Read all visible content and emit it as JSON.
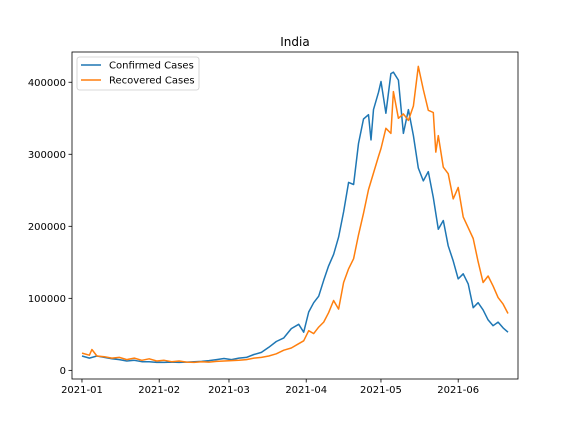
{
  "chart_data": {
    "type": "line",
    "title": "India",
    "xlabel": "",
    "ylabel": "",
    "x_tick_labels": [
      "2021-01",
      "2021-02",
      "2021-03",
      "2021-04",
      "2021-05",
      "2021-06"
    ],
    "x_tick_dates": [
      "2021-01-01",
      "2021-02-01",
      "2021-03-01",
      "2021-04-01",
      "2021-05-01",
      "2021-06-01"
    ],
    "y_ticks": [
      0,
      100000,
      200000,
      300000,
      400000
    ],
    "xlim": [
      "2020-12-28",
      "2021-06-25"
    ],
    "ylim": [
      -12000,
      442000
    ],
    "legend_position": "upper left",
    "grid": false,
    "series": [
      {
        "name": "Confirmed Cases",
        "color": "#1f77b4",
        "points": [
          [
            "2021-01-01",
            20000
          ],
          [
            "2021-01-04",
            17000
          ],
          [
            "2021-01-07",
            20000
          ],
          [
            "2021-01-10",
            18000
          ],
          [
            "2021-01-13",
            16000
          ],
          [
            "2021-01-16",
            15000
          ],
          [
            "2021-01-19",
            13000
          ],
          [
            "2021-01-22",
            14000
          ],
          [
            "2021-01-25",
            12000
          ],
          [
            "2021-01-28",
            12000
          ],
          [
            "2021-01-31",
            11000
          ],
          [
            "2021-02-03",
            11000
          ],
          [
            "2021-02-06",
            11500
          ],
          [
            "2021-02-09",
            11000
          ],
          [
            "2021-02-12",
            11500
          ],
          [
            "2021-02-15",
            12000
          ],
          [
            "2021-02-18",
            12500
          ],
          [
            "2021-02-21",
            13500
          ],
          [
            "2021-02-24",
            15000
          ],
          [
            "2021-02-27",
            16500
          ],
          [
            "2021-03-02",
            15000
          ],
          [
            "2021-03-05",
            17000
          ],
          [
            "2021-03-08",
            18000
          ],
          [
            "2021-03-11",
            22000
          ],
          [
            "2021-03-14",
            25000
          ],
          [
            "2021-03-17",
            32000
          ],
          [
            "2021-03-20",
            40000
          ],
          [
            "2021-03-23",
            45000
          ],
          [
            "2021-03-26",
            58000
          ],
          [
            "2021-03-29",
            64000
          ],
          [
            "2021-03-31",
            53000
          ],
          [
            "2021-04-02",
            81000
          ],
          [
            "2021-04-04",
            94000
          ],
          [
            "2021-04-06",
            103000
          ],
          [
            "2021-04-08",
            125000
          ],
          [
            "2021-04-10",
            145000
          ],
          [
            "2021-04-12",
            161000
          ],
          [
            "2021-04-14",
            185000
          ],
          [
            "2021-04-16",
            220000
          ],
          [
            "2021-04-18",
            261000
          ],
          [
            "2021-04-20",
            258000
          ],
          [
            "2021-04-22",
            315000
          ],
          [
            "2021-04-24",
            349000
          ],
          [
            "2021-04-26",
            355000
          ],
          [
            "2021-04-27",
            320000
          ],
          [
            "2021-04-28",
            362000
          ],
          [
            "2021-04-30",
            386000
          ],
          [
            "2021-05-01",
            401000
          ],
          [
            "2021-05-03",
            357000
          ],
          [
            "2021-05-05",
            412000
          ],
          [
            "2021-05-06",
            414000
          ],
          [
            "2021-05-08",
            403000
          ],
          [
            "2021-05-10",
            329000
          ],
          [
            "2021-05-12",
            362000
          ],
          [
            "2021-05-14",
            326000
          ],
          [
            "2021-05-16",
            281000
          ],
          [
            "2021-05-18",
            263000
          ],
          [
            "2021-05-20",
            276000
          ],
          [
            "2021-05-22",
            240000
          ],
          [
            "2021-05-24",
            196000
          ],
          [
            "2021-05-26",
            208000
          ],
          [
            "2021-05-28",
            173000
          ],
          [
            "2021-05-30",
            152000
          ],
          [
            "2021-06-01",
            127000
          ],
          [
            "2021-06-03",
            134000
          ],
          [
            "2021-06-05",
            120000
          ],
          [
            "2021-06-07",
            87000
          ],
          [
            "2021-06-09",
            94000
          ],
          [
            "2021-06-11",
            84000
          ],
          [
            "2021-06-13",
            70000
          ],
          [
            "2021-06-15",
            62000
          ],
          [
            "2021-06-17",
            67000
          ],
          [
            "2021-06-19",
            59000
          ],
          [
            "2021-06-21",
            53000
          ]
        ]
      },
      {
        "name": "Recovered Cases",
        "color": "#ff7f0e",
        "points": [
          [
            "2021-01-01",
            24000
          ],
          [
            "2021-01-04",
            21000
          ],
          [
            "2021-01-05",
            29000
          ],
          [
            "2021-01-07",
            20000
          ],
          [
            "2021-01-10",
            19000
          ],
          [
            "2021-01-13",
            17000
          ],
          [
            "2021-01-16",
            18000
          ],
          [
            "2021-01-19",
            15000
          ],
          [
            "2021-01-22",
            17000
          ],
          [
            "2021-01-25",
            14000
          ],
          [
            "2021-01-28",
            16000
          ],
          [
            "2021-01-31",
            13000
          ],
          [
            "2021-02-03",
            14000
          ],
          [
            "2021-02-06",
            12000
          ],
          [
            "2021-02-09",
            13000
          ],
          [
            "2021-02-12",
            11500
          ],
          [
            "2021-02-15",
            11000
          ],
          [
            "2021-02-18",
            12000
          ],
          [
            "2021-02-21",
            11500
          ],
          [
            "2021-02-24",
            12500
          ],
          [
            "2021-02-27",
            13000
          ],
          [
            "2021-03-02",
            13500
          ],
          [
            "2021-03-05",
            14000
          ],
          [
            "2021-03-08",
            15000
          ],
          [
            "2021-03-11",
            17000
          ],
          [
            "2021-03-14",
            18000
          ],
          [
            "2021-03-17",
            20000
          ],
          [
            "2021-03-20",
            23000
          ],
          [
            "2021-03-23",
            28000
          ],
          [
            "2021-03-26",
            31000
          ],
          [
            "2021-03-29",
            37000
          ],
          [
            "2021-03-31",
            41000
          ],
          [
            "2021-04-02",
            55000
          ],
          [
            "2021-04-04",
            51000
          ],
          [
            "2021-04-06",
            60000
          ],
          [
            "2021-04-08",
            67000
          ],
          [
            "2021-04-10",
            80000
          ],
          [
            "2021-04-12",
            97000
          ],
          [
            "2021-04-14",
            85000
          ],
          [
            "2021-04-16",
            122000
          ],
          [
            "2021-04-18",
            141000
          ],
          [
            "2021-04-20",
            155000
          ],
          [
            "2021-04-22",
            188000
          ],
          [
            "2021-04-24",
            218000
          ],
          [
            "2021-04-26",
            251000
          ],
          [
            "2021-04-28",
            274000
          ],
          [
            "2021-04-30",
            297000
          ],
          [
            "2021-05-01",
            308000
          ],
          [
            "2021-05-03",
            336000
          ],
          [
            "2021-05-05",
            329000
          ],
          [
            "2021-05-06",
            387000
          ],
          [
            "2021-05-08",
            350000
          ],
          [
            "2021-05-10",
            356000
          ],
          [
            "2021-05-12",
            347000
          ],
          [
            "2021-05-14",
            367000
          ],
          [
            "2021-05-16",
            422000
          ],
          [
            "2021-05-18",
            390000
          ],
          [
            "2021-05-20",
            361000
          ],
          [
            "2021-05-22",
            358000
          ],
          [
            "2021-05-23",
            303000
          ],
          [
            "2021-05-24",
            326000
          ],
          [
            "2021-05-26",
            282000
          ],
          [
            "2021-05-28",
            273000
          ],
          [
            "2021-05-30",
            238000
          ],
          [
            "2021-06-01",
            254000
          ],
          [
            "2021-06-03",
            213000
          ],
          [
            "2021-06-05",
            198000
          ],
          [
            "2021-06-07",
            183000
          ],
          [
            "2021-06-09",
            151000
          ],
          [
            "2021-06-11",
            122000
          ],
          [
            "2021-06-13",
            131000
          ],
          [
            "2021-06-15",
            117000
          ],
          [
            "2021-06-17",
            101000
          ],
          [
            "2021-06-19",
            92000
          ],
          [
            "2021-06-21",
            79000
          ]
        ]
      }
    ]
  }
}
